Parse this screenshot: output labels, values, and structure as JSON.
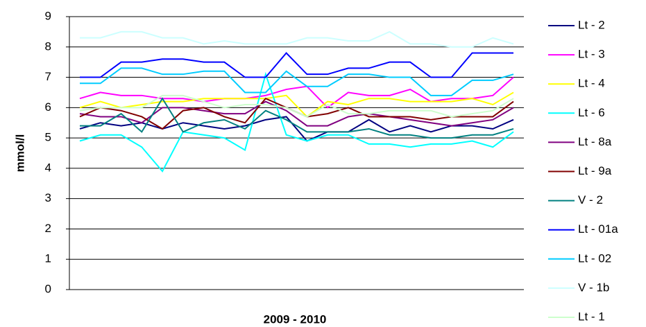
{
  "chart_data": {
    "type": "line",
    "y_label": "mmol/l",
    "x_label": "2009 - 2010",
    "categories": [
      null,
      null,
      null,
      null,
      null,
      null,
      null,
      null,
      null,
      null,
      null,
      null,
      null,
      null,
      null,
      null,
      null,
      null,
      null,
      null,
      null,
      null
    ],
    "ylim": [
      0,
      9
    ],
    "yticks": [
      0,
      1,
      2,
      3,
      4,
      5,
      6,
      7,
      8,
      9
    ],
    "grid": true,
    "legend": "right",
    "series": [
      {
        "name": "Lt - 2",
        "color": "#000080",
        "values": [
          5.3,
          5.5,
          5.4,
          5.5,
          5.3,
          5.5,
          5.4,
          5.3,
          5.4,
          5.6,
          5.7,
          4.9,
          5.2,
          5.2,
          5.6,
          5.2,
          5.4,
          5.2,
          5.4,
          5.4,
          5.3,
          5.6
        ]
      },
      {
        "name": "Lt - 3",
        "color": "#ff00ff",
        "values": [
          6.3,
          6.5,
          6.4,
          6.4,
          6.3,
          6.3,
          6.2,
          6.3,
          6.3,
          6.4,
          6.6,
          6.7,
          6.0,
          6.5,
          6.4,
          6.4,
          6.6,
          6.2,
          6.3,
          6.3,
          6.4,
          7.0
        ]
      },
      {
        "name": "Lt - 4",
        "color": "#ffff00",
        "values": [
          6.0,
          6.2,
          6.0,
          6.1,
          6.2,
          6.2,
          6.3,
          6.3,
          6.3,
          6.3,
          6.4,
          5.7,
          6.2,
          6.1,
          6.3,
          6.3,
          6.2,
          6.2,
          6.2,
          6.3,
          6.1,
          6.5
        ]
      },
      {
        "name": "Lt - 6",
        "color": "#00ffff",
        "values": [
          4.9,
          5.1,
          5.1,
          4.7,
          3.9,
          5.2,
          5.1,
          5.0,
          4.6,
          7.1,
          5.1,
          4.9,
          5.1,
          5.1,
          4.8,
          4.8,
          4.7,
          4.8,
          4.8,
          4.9,
          4.7,
          5.2
        ]
      },
      {
        "name": "Lt - 8a",
        "color": "#800080",
        "values": [
          5.8,
          5.7,
          5.7,
          5.5,
          6.0,
          6.0,
          5.9,
          5.8,
          5.8,
          6.2,
          5.9,
          5.4,
          5.4,
          5.7,
          5.8,
          5.7,
          5.6,
          5.5,
          5.4,
          5.5,
          5.6,
          6.0
        ]
      },
      {
        "name": "Lt - 9a",
        "color": "#800000",
        "values": [
          5.7,
          6.0,
          5.9,
          5.7,
          5.3,
          5.9,
          6.0,
          5.7,
          5.5,
          6.3,
          6.0,
          5.7,
          5.8,
          6.0,
          5.7,
          5.7,
          5.7,
          5.6,
          5.7,
          5.7,
          5.7,
          6.2
        ]
      },
      {
        "name": "V - 2",
        "color": "#008080",
        "values": [
          5.4,
          5.4,
          5.8,
          5.2,
          6.3,
          5.2,
          5.5,
          5.6,
          5.3,
          5.9,
          5.6,
          5.2,
          5.2,
          5.2,
          5.3,
          5.1,
          5.1,
          5.0,
          5.0,
          5.1,
          5.1,
          5.3
        ]
      },
      {
        "name": "Lt - 01a",
        "color": "#0000ff",
        "values": [
          7.0,
          7.0,
          7.5,
          7.5,
          7.6,
          7.6,
          7.5,
          7.5,
          7.0,
          7.0,
          7.8,
          7.1,
          7.1,
          7.3,
          7.3,
          7.5,
          7.5,
          7.0,
          7.0,
          7.8,
          7.8,
          7.8
        ]
      },
      {
        "name": "Lt - 02",
        "color": "#00ccff",
        "values": [
          6.8,
          6.8,
          7.3,
          7.3,
          7.1,
          7.1,
          7.2,
          7.2,
          6.5,
          6.5,
          7.2,
          6.7,
          6.7,
          7.1,
          7.1,
          7.0,
          7.0,
          6.4,
          6.4,
          6.9,
          6.9,
          7.1
        ]
      },
      {
        "name": "V - 1b",
        "color": "#ccffff",
        "values": [
          8.3,
          8.3,
          8.5,
          8.5,
          8.3,
          8.3,
          8.1,
          8.2,
          8.1,
          8.1,
          8.1,
          8.3,
          8.3,
          8.2,
          8.2,
          8.5,
          8.1,
          8.1,
          8.0,
          8.0,
          8.3,
          8.1
        ]
      },
      {
        "name": "Lt - 1",
        "color": "#ccffcc",
        "values": [
          5.9,
          6.0,
          6.0,
          6.0,
          6.4,
          6.4,
          6.2,
          6.0,
          6.1,
          6.1,
          6.0,
          5.7,
          6.1,
          5.8,
          5.8,
          5.9,
          5.9,
          5.9,
          5.7,
          5.8,
          5.9,
          6.3
        ]
      }
    ]
  }
}
